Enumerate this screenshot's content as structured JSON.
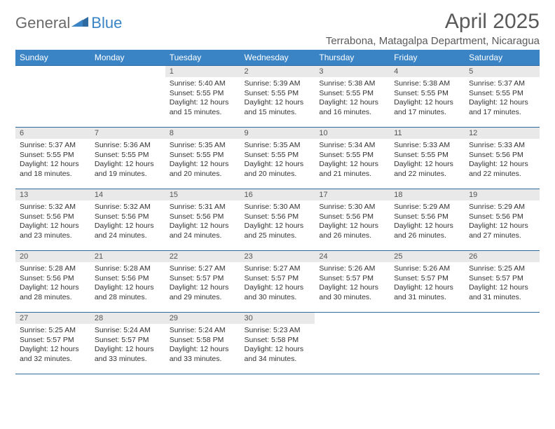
{
  "logo": {
    "part1": "General",
    "part2": "Blue"
  },
  "title": "April 2025",
  "location": "Terrabona, Matagalpa Department, Nicaragua",
  "colors": {
    "header_bg": "#3a84c5",
    "header_text": "#ffffff",
    "daynum_bg": "#e9e9e9",
    "border": "#2f6aa0",
    "title_color": "#5a5a5a"
  },
  "weekdays": [
    "Sunday",
    "Monday",
    "Tuesday",
    "Wednesday",
    "Thursday",
    "Friday",
    "Saturday"
  ],
  "weeks": [
    [
      null,
      null,
      {
        "n": "1",
        "sr": "5:40 AM",
        "ss": "5:55 PM",
        "dl": "12 hours and 15 minutes."
      },
      {
        "n": "2",
        "sr": "5:39 AM",
        "ss": "5:55 PM",
        "dl": "12 hours and 15 minutes."
      },
      {
        "n": "3",
        "sr": "5:38 AM",
        "ss": "5:55 PM",
        "dl": "12 hours and 16 minutes."
      },
      {
        "n": "4",
        "sr": "5:38 AM",
        "ss": "5:55 PM",
        "dl": "12 hours and 17 minutes."
      },
      {
        "n": "5",
        "sr": "5:37 AM",
        "ss": "5:55 PM",
        "dl": "12 hours and 17 minutes."
      }
    ],
    [
      {
        "n": "6",
        "sr": "5:37 AM",
        "ss": "5:55 PM",
        "dl": "12 hours and 18 minutes."
      },
      {
        "n": "7",
        "sr": "5:36 AM",
        "ss": "5:55 PM",
        "dl": "12 hours and 19 minutes."
      },
      {
        "n": "8",
        "sr": "5:35 AM",
        "ss": "5:55 PM",
        "dl": "12 hours and 20 minutes."
      },
      {
        "n": "9",
        "sr": "5:35 AM",
        "ss": "5:55 PM",
        "dl": "12 hours and 20 minutes."
      },
      {
        "n": "10",
        "sr": "5:34 AM",
        "ss": "5:55 PM",
        "dl": "12 hours and 21 minutes."
      },
      {
        "n": "11",
        "sr": "5:33 AM",
        "ss": "5:55 PM",
        "dl": "12 hours and 22 minutes."
      },
      {
        "n": "12",
        "sr": "5:33 AM",
        "ss": "5:56 PM",
        "dl": "12 hours and 22 minutes."
      }
    ],
    [
      {
        "n": "13",
        "sr": "5:32 AM",
        "ss": "5:56 PM",
        "dl": "12 hours and 23 minutes."
      },
      {
        "n": "14",
        "sr": "5:32 AM",
        "ss": "5:56 PM",
        "dl": "12 hours and 24 minutes."
      },
      {
        "n": "15",
        "sr": "5:31 AM",
        "ss": "5:56 PM",
        "dl": "12 hours and 24 minutes."
      },
      {
        "n": "16",
        "sr": "5:30 AM",
        "ss": "5:56 PM",
        "dl": "12 hours and 25 minutes."
      },
      {
        "n": "17",
        "sr": "5:30 AM",
        "ss": "5:56 PM",
        "dl": "12 hours and 26 minutes."
      },
      {
        "n": "18",
        "sr": "5:29 AM",
        "ss": "5:56 PM",
        "dl": "12 hours and 26 minutes."
      },
      {
        "n": "19",
        "sr": "5:29 AM",
        "ss": "5:56 PM",
        "dl": "12 hours and 27 minutes."
      }
    ],
    [
      {
        "n": "20",
        "sr": "5:28 AM",
        "ss": "5:56 PM",
        "dl": "12 hours and 28 minutes."
      },
      {
        "n": "21",
        "sr": "5:28 AM",
        "ss": "5:56 PM",
        "dl": "12 hours and 28 minutes."
      },
      {
        "n": "22",
        "sr": "5:27 AM",
        "ss": "5:57 PM",
        "dl": "12 hours and 29 minutes."
      },
      {
        "n": "23",
        "sr": "5:27 AM",
        "ss": "5:57 PM",
        "dl": "12 hours and 30 minutes."
      },
      {
        "n": "24",
        "sr": "5:26 AM",
        "ss": "5:57 PM",
        "dl": "12 hours and 30 minutes."
      },
      {
        "n": "25",
        "sr": "5:26 AM",
        "ss": "5:57 PM",
        "dl": "12 hours and 31 minutes."
      },
      {
        "n": "26",
        "sr": "5:25 AM",
        "ss": "5:57 PM",
        "dl": "12 hours and 31 minutes."
      }
    ],
    [
      {
        "n": "27",
        "sr": "5:25 AM",
        "ss": "5:57 PM",
        "dl": "12 hours and 32 minutes."
      },
      {
        "n": "28",
        "sr": "5:24 AM",
        "ss": "5:57 PM",
        "dl": "12 hours and 33 minutes."
      },
      {
        "n": "29",
        "sr": "5:24 AM",
        "ss": "5:58 PM",
        "dl": "12 hours and 33 minutes."
      },
      {
        "n": "30",
        "sr": "5:23 AM",
        "ss": "5:58 PM",
        "dl": "12 hours and 34 minutes."
      },
      null,
      null,
      null
    ]
  ],
  "labels": {
    "sunrise": "Sunrise:",
    "sunset": "Sunset:",
    "daylight": "Daylight:"
  }
}
